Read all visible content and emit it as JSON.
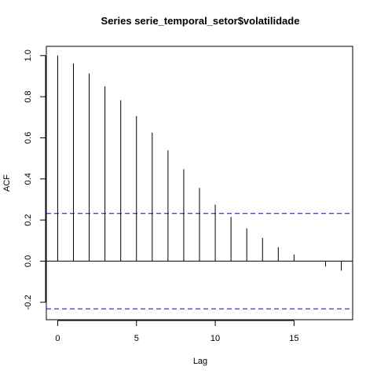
{
  "chart_data": {
    "type": "bar",
    "title": "Series  serie_temporal_setor$volatilidade",
    "xlabel": "Lag",
    "ylabel": "ACF",
    "xlim": [
      -0.72,
      18.72
    ],
    "ylim": [
      -0.285,
      1.045
    ],
    "x_ticks": [
      0,
      5,
      10,
      15
    ],
    "y_ticks": [
      -0.2,
      0.0,
      0.2,
      0.4,
      0.6,
      0.8,
      1.0
    ],
    "y_tick_labels": [
      "-0.2",
      "0.0",
      "0.2",
      "0.4",
      "0.6",
      "0.8",
      "1.0"
    ],
    "confidence_bounds": [
      0.232,
      -0.232
    ],
    "confidence_color": "#0000cc",
    "lags": [
      0,
      1,
      2,
      3,
      4,
      5,
      6,
      7,
      8,
      9,
      10,
      11,
      12,
      13,
      14,
      15,
      16,
      17,
      18
    ],
    "values": [
      1.0,
      0.962,
      0.913,
      0.851,
      0.783,
      0.706,
      0.625,
      0.539,
      0.447,
      0.356,
      0.275,
      0.215,
      0.159,
      0.113,
      0.068,
      0.032,
      0.0,
      -0.026,
      -0.046
    ]
  }
}
